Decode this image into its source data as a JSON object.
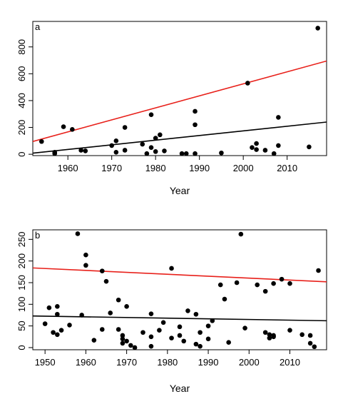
{
  "chart_data": [
    {
      "type": "scatter",
      "panel_label": "a",
      "xlabel": "Year",
      "ylabel": "",
      "xlim": [
        1952,
        2019
      ],
      "ylim": [
        -10,
        990
      ],
      "x_ticks": [
        1960,
        1970,
        1980,
        1990,
        2000,
        2010
      ],
      "y_ticks": [
        0,
        200,
        400,
        600,
        800
      ],
      "grid": false,
      "legend": "none",
      "points": [
        [
          1954,
          95
        ],
        [
          1957,
          15
        ],
        [
          1957,
          5
        ],
        [
          1959,
          205
        ],
        [
          1961,
          185
        ],
        [
          1963,
          30
        ],
        [
          1964,
          25
        ],
        [
          1970,
          65
        ],
        [
          1971,
          15
        ],
        [
          1971,
          100
        ],
        [
          1973,
          30
        ],
        [
          1973,
          200
        ],
        [
          1977,
          75
        ],
        [
          1978,
          5
        ],
        [
          1979,
          295
        ],
        [
          1979,
          50
        ],
        [
          1980,
          120
        ],
        [
          1980,
          20
        ],
        [
          1981,
          145
        ],
        [
          1982,
          25
        ],
        [
          1986,
          5
        ],
        [
          1987,
          5
        ],
        [
          1989,
          320
        ],
        [
          1989,
          220
        ],
        [
          1989,
          5
        ],
        [
          1995,
          10
        ],
        [
          2001,
          530
        ],
        [
          2002,
          50
        ],
        [
          2003,
          80
        ],
        [
          2003,
          35
        ],
        [
          2005,
          30
        ],
        [
          2007,
          5
        ],
        [
          2008,
          275
        ],
        [
          2008,
          65
        ],
        [
          2015,
          55
        ],
        [
          2017,
          940
        ]
      ],
      "series": [
        {
          "kind": "trend",
          "color": "#e8201a",
          "x": [
            1952,
            2019
          ],
          "y": [
            95,
            695
          ]
        },
        {
          "kind": "trend",
          "color": "#000000",
          "x": [
            1952,
            2019
          ],
          "y": [
            8,
            240
          ]
        }
      ]
    },
    {
      "type": "scatter",
      "panel_label": "b",
      "xlabel": "Year",
      "ylabel": "",
      "xlim": [
        1947,
        2019
      ],
      "ylim": [
        -5,
        272
      ],
      "x_ticks": [
        1950,
        1960,
        1970,
        1980,
        1990,
        2000,
        2010
      ],
      "y_ticks": [
        0,
        50,
        100,
        150,
        200,
        250
      ],
      "grid": false,
      "legend": "none",
      "points": [
        [
          1950,
          55
        ],
        [
          1951,
          92
        ],
        [
          1952,
          35
        ],
        [
          1953,
          30
        ],
        [
          1953,
          95
        ],
        [
          1953,
          77
        ],
        [
          1954,
          40
        ],
        [
          1956,
          52
        ],
        [
          1958,
          263
        ],
        [
          1959,
          75
        ],
        [
          1960,
          214
        ],
        [
          1960,
          190
        ],
        [
          1962,
          17
        ],
        [
          1964,
          177
        ],
        [
          1964,
          42
        ],
        [
          1965,
          153
        ],
        [
          1966,
          80
        ],
        [
          1968,
          110
        ],
        [
          1968,
          42
        ],
        [
          1969,
          28
        ],
        [
          1969,
          20
        ],
        [
          1969,
          10
        ],
        [
          1970,
          95
        ],
        [
          1970,
          15
        ],
        [
          1971,
          5
        ],
        [
          1972,
          0
        ],
        [
          1974,
          35
        ],
        [
          1976,
          78
        ],
        [
          1976,
          25
        ],
        [
          1976,
          3
        ],
        [
          1978,
          40
        ],
        [
          1979,
          58
        ],
        [
          1981,
          183
        ],
        [
          1981,
          22
        ],
        [
          1983,
          48
        ],
        [
          1983,
          28
        ],
        [
          1984,
          15
        ],
        [
          1985,
          85
        ],
        [
          1987,
          77
        ],
        [
          1987,
          8
        ],
        [
          1988,
          35
        ],
        [
          1988,
          3
        ],
        [
          1990,
          20
        ],
        [
          1990,
          50
        ],
        [
          1991,
          62
        ],
        [
          1993,
          145
        ],
        [
          1994,
          112
        ],
        [
          1995,
          12
        ],
        [
          1997,
          150
        ],
        [
          1998,
          262
        ],
        [
          1999,
          45
        ],
        [
          2002,
          145
        ],
        [
          2004,
          130
        ],
        [
          2004,
          35
        ],
        [
          2005,
          30
        ],
        [
          2005,
          22
        ],
        [
          2006,
          148
        ],
        [
          2006,
          28
        ],
        [
          2006,
          25
        ],
        [
          2008,
          158
        ],
        [
          2010,
          148
        ],
        [
          2010,
          40
        ],
        [
          2013,
          30
        ],
        [
          2015,
          28
        ],
        [
          2015,
          10
        ],
        [
          2016,
          2
        ],
        [
          2017,
          178
        ]
      ],
      "series": [
        {
          "kind": "trend",
          "color": "#e8201a",
          "x": [
            1947,
            2019
          ],
          "y": [
            184,
            152
          ]
        },
        {
          "kind": "trend",
          "color": "#000000",
          "x": [
            1947,
            2019
          ],
          "y": [
            73,
            62
          ]
        }
      ]
    }
  ]
}
